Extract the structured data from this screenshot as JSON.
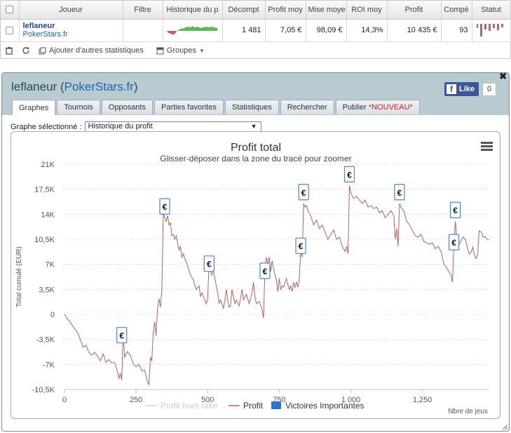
{
  "table": {
    "headers": [
      "Joueur",
      "Filtre",
      "Historique du p",
      "Décompt",
      "Profit moy",
      "Mise moye",
      "ROI moy",
      "Profit",
      "Compé",
      "Statut"
    ],
    "row": {
      "player": "leflaneur",
      "site": "PokerStars.fr",
      "decompte": "1 481",
      "profit_moy": "7,05 €",
      "mise_moy": "98,09 €",
      "roi_moy": "14,3%",
      "profit": "10 435 €",
      "competitions": "93",
      "remove": "x"
    },
    "toolbar": {
      "add_stats": "Ajouter d'autres statistiques",
      "groups": "Groupes"
    }
  },
  "panel": {
    "title_player": "leflaneur",
    "title_site": "PokerStars.fr",
    "like_label": "Like",
    "like_count": "0",
    "close": "✖",
    "tabs": [
      "Graphes",
      "Tournois",
      "Opposants",
      "Parties favorites",
      "Statistiques",
      "Rechercher",
      "Publier"
    ],
    "new_badge": "*NOUVEAU*",
    "graph_select_label": "Graphe sélectionné :",
    "graph_select_value": "Historique du profit"
  },
  "chart_data": {
    "type": "line",
    "title": "Profit total",
    "subtitle": "Glisser-déposer dans la zone du tracé pour zoomer",
    "ylabel": "Total cumulé (EUR)",
    "xlabel": "Nbre de jeux",
    "ylim": [
      -10500,
      21000
    ],
    "xlim": [
      0,
      1481
    ],
    "y_ticks": [
      -10500,
      -7000,
      -3500,
      0,
      3500,
      7000,
      10500,
      14000,
      17500,
      21000
    ],
    "y_tick_labels": [
      "-10,5K",
      "-7K",
      "-3,5K",
      "0",
      "3,5K",
      "7K",
      "10,5K",
      "14K",
      "17,5K",
      "21K"
    ],
    "x_ticks": [
      0,
      250,
      500,
      750,
      1000,
      1250
    ],
    "x_tick_labels": [
      "0",
      "250",
      "500",
      "750",
      "1 000",
      "1,250"
    ],
    "legend": [
      "Profit hors rake",
      "Profit",
      "Victoires Importantes"
    ],
    "legend_colors": [
      "#dddddd",
      "#b96060",
      "#2f6fd6"
    ],
    "grid": true,
    "series": [
      {
        "name": "Profit",
        "color": "#b96060",
        "points": [
          [
            0,
            0
          ],
          [
            10,
            -600
          ],
          [
            20,
            -1100
          ],
          [
            35,
            -2000
          ],
          [
            45,
            -2500
          ],
          [
            55,
            -3500
          ],
          [
            65,
            -4600
          ],
          [
            75,
            -4300
          ],
          [
            85,
            -5300
          ],
          [
            95,
            -5700
          ],
          [
            105,
            -5300
          ],
          [
            115,
            -5800
          ],
          [
            125,
            -6500
          ],
          [
            135,
            -5500
          ],
          [
            145,
            -6700
          ],
          [
            155,
            -6300
          ],
          [
            165,
            -6800
          ],
          [
            175,
            -6700
          ],
          [
            185,
            -8000
          ],
          [
            190,
            -9000
          ],
          [
            195,
            -8200
          ],
          [
            200,
            -9200
          ],
          [
            205,
            -2600
          ],
          [
            210,
            -6000
          ],
          [
            220,
            -5200
          ],
          [
            230,
            -5800
          ],
          [
            240,
            -6900
          ],
          [
            250,
            -7300
          ],
          [
            260,
            -7000
          ],
          [
            270,
            -7900
          ],
          [
            280,
            -7800
          ],
          [
            290,
            -9500
          ],
          [
            295,
            -9800
          ],
          [
            300,
            -6000
          ],
          [
            305,
            -6500
          ],
          [
            310,
            -2500
          ],
          [
            315,
            -1000
          ],
          [
            320,
            -3000
          ],
          [
            325,
            1000
          ],
          [
            330,
            2200
          ],
          [
            335,
            1000
          ],
          [
            340,
            3500
          ],
          [
            345,
            14200
          ],
          [
            350,
            13500
          ],
          [
            355,
            13000
          ],
          [
            360,
            13800
          ],
          [
            365,
            12500
          ],
          [
            370,
            12800
          ],
          [
            375,
            11000
          ],
          [
            380,
            11200
          ],
          [
            385,
            10500
          ],
          [
            390,
            11000
          ],
          [
            395,
            10000
          ],
          [
            400,
            9000
          ],
          [
            405,
            9500
          ],
          [
            410,
            8000
          ],
          [
            415,
            8500
          ],
          [
            420,
            7800
          ],
          [
            430,
            6800
          ],
          [
            440,
            5500
          ],
          [
            450,
            4800
          ],
          [
            460,
            3500
          ],
          [
            470,
            4000
          ],
          [
            475,
            2500
          ],
          [
            480,
            3000
          ],
          [
            485,
            2500
          ],
          [
            490,
            2000
          ],
          [
            495,
            1500
          ],
          [
            500,
            2200
          ],
          [
            505,
            7500
          ],
          [
            510,
            6000
          ],
          [
            515,
            5500
          ],
          [
            520,
            6200
          ],
          [
            525,
            5000
          ],
          [
            530,
            4000
          ],
          [
            535,
            3000
          ],
          [
            540,
            1500
          ],
          [
            545,
            2000
          ],
          [
            550,
            1500
          ],
          [
            555,
            800
          ],
          [
            560,
            2000
          ],
          [
            565,
            3500
          ],
          [
            570,
            2000
          ],
          [
            575,
            1000
          ],
          [
            580,
            1200
          ],
          [
            585,
            3500
          ],
          [
            590,
            2500
          ],
          [
            595,
            1500
          ],
          [
            600,
            2000
          ],
          [
            610,
            1200
          ],
          [
            620,
            3500
          ],
          [
            625,
            2000
          ],
          [
            635,
            2800
          ],
          [
            645,
            1500
          ],
          [
            655,
            3000
          ],
          [
            660,
            4500
          ],
          [
            665,
            2500
          ],
          [
            670,
            1500
          ],
          [
            680,
            1800
          ],
          [
            690,
            700
          ],
          [
            695,
            -500
          ],
          [
            700,
            6500
          ],
          [
            705,
            8000
          ],
          [
            710,
            7000
          ],
          [
            715,
            8000
          ],
          [
            720,
            6000
          ],
          [
            725,
            7500
          ],
          [
            730,
            6500
          ],
          [
            735,
            5500
          ],
          [
            740,
            4800
          ],
          [
            745,
            3200
          ],
          [
            750,
            5000
          ],
          [
            755,
            3500
          ],
          [
            760,
            4000
          ],
          [
            765,
            3800
          ],
          [
            775,
            5000
          ],
          [
            780,
            4200
          ],
          [
            785,
            3500
          ],
          [
            790,
            4000
          ],
          [
            795,
            3200
          ],
          [
            800,
            4500
          ],
          [
            805,
            3800
          ],
          [
            810,
            4500
          ],
          [
            815,
            3800
          ],
          [
            820,
            5000
          ],
          [
            825,
            9200
          ],
          [
            830,
            8000
          ],
          [
            835,
            15500
          ],
          [
            840,
            15000
          ],
          [
            845,
            15200
          ],
          [
            850,
            14500
          ],
          [
            860,
            13800
          ],
          [
            870,
            12500
          ],
          [
            880,
            13200
          ],
          [
            890,
            12000
          ],
          [
            900,
            12500
          ],
          [
            910,
            11500
          ],
          [
            920,
            10500
          ],
          [
            930,
            11200
          ],
          [
            940,
            11800
          ],
          [
            950,
            10500
          ],
          [
            960,
            10800
          ],
          [
            970,
            9500
          ],
          [
            980,
            8800
          ],
          [
            985,
            9500
          ],
          [
            990,
            8500
          ],
          [
            995,
            18000
          ],
          [
            1000,
            17000
          ],
          [
            1010,
            16200
          ],
          [
            1020,
            16500
          ],
          [
            1030,
            16000
          ],
          [
            1040,
            15500
          ],
          [
            1050,
            16000
          ],
          [
            1060,
            15000
          ],
          [
            1070,
            15200
          ],
          [
            1080,
            14800
          ],
          [
            1090,
            15000
          ],
          [
            1100,
            14200
          ],
          [
            1110,
            14500
          ],
          [
            1120,
            13500
          ],
          [
            1130,
            14000
          ],
          [
            1140,
            14500
          ],
          [
            1150,
            13800
          ],
          [
            1155,
            10500
          ],
          [
            1160,
            12000
          ],
          [
            1165,
            9500
          ],
          [
            1170,
            15500
          ],
          [
            1175,
            15000
          ],
          [
            1185,
            14500
          ],
          [
            1195,
            13000
          ],
          [
            1205,
            12500
          ],
          [
            1215,
            11800
          ],
          [
            1225,
            11000
          ],
          [
            1235,
            10800
          ],
          [
            1245,
            11200
          ],
          [
            1255,
            10200
          ],
          [
            1265,
            10000
          ],
          [
            1275,
            9800
          ],
          [
            1285,
            10000
          ],
          [
            1295,
            9200
          ],
          [
            1305,
            9500
          ],
          [
            1315,
            8800
          ],
          [
            1325,
            7000
          ],
          [
            1335,
            6500
          ],
          [
            1345,
            5800
          ],
          [
            1350,
            5500
          ],
          [
            1355,
            4500
          ],
          [
            1360,
            10000
          ],
          [
            1365,
            13000
          ],
          [
            1370,
            10500
          ],
          [
            1378,
            9800
          ],
          [
            1385,
            10300
          ],
          [
            1392,
            10800
          ],
          [
            1400,
            10500
          ],
          [
            1408,
            9200
          ],
          [
            1414,
            8400
          ],
          [
            1420,
            8700
          ],
          [
            1426,
            9400
          ],
          [
            1432,
            8200
          ],
          [
            1437,
            7800
          ],
          [
            1443,
            8400
          ],
          [
            1448,
            11700
          ],
          [
            1456,
            11500
          ],
          [
            1462,
            10800
          ],
          [
            1468,
            10900
          ],
          [
            1474,
            10600
          ],
          [
            1481,
            10435
          ]
        ]
      }
    ],
    "markers": [
      {
        "x": 200,
        "y": -3000,
        "label": "€"
      },
      {
        "x": 350,
        "y": 15000,
        "label": "€"
      },
      {
        "x": 505,
        "y": 7000,
        "label": "€"
      },
      {
        "x": 700,
        "y": 6000,
        "label": "€"
      },
      {
        "x": 825,
        "y": 9500,
        "label": "€"
      },
      {
        "x": 835,
        "y": 17000,
        "label": "€"
      },
      {
        "x": 995,
        "y": 19500,
        "label": "€"
      },
      {
        "x": 1170,
        "y": 17000,
        "label": "€"
      },
      {
        "x": 1360,
        "y": 10000,
        "label": "€"
      },
      {
        "x": 1365,
        "y": 14500,
        "label": "€"
      }
    ]
  }
}
